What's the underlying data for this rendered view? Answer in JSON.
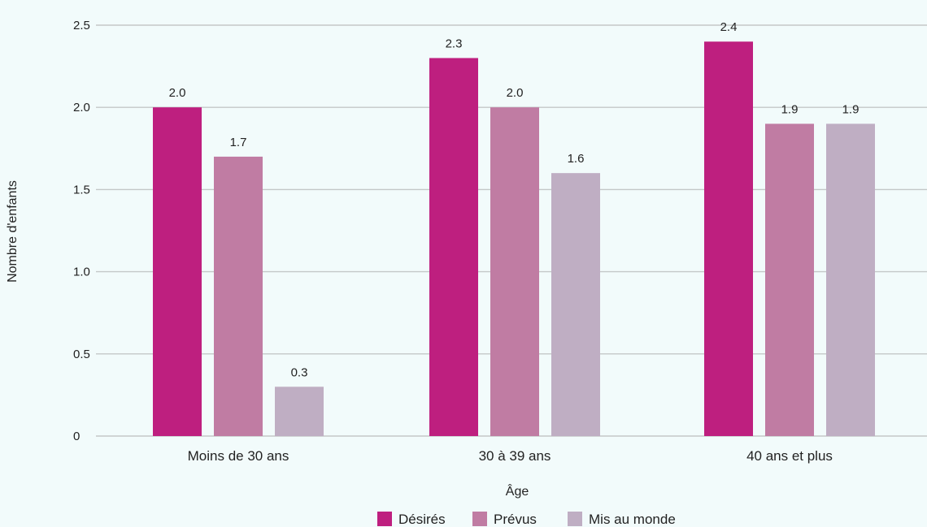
{
  "chart_data": {
    "type": "bar",
    "categories": [
      "Moins de 30 ans",
      "30 à 39 ans",
      "40 ans et plus"
    ],
    "series": [
      {
        "name": "Désirés",
        "values": [
          2.0,
          2.3,
          2.4
        ],
        "value_labels": [
          "2.0",
          "2.3",
          "2.4"
        ],
        "color": "#be1f7f"
      },
      {
        "name": "Prévus",
        "values": [
          1.7,
          2.0,
          1.9
        ],
        "value_labels": [
          "1.7",
          "2.0",
          "1.9"
        ],
        "color": "#c07ca3"
      },
      {
        "name": "Mis au monde",
        "values": [
          0.3,
          1.6,
          1.9
        ],
        "value_labels": [
          "0.3",
          "1.6",
          "1.9"
        ],
        "color": "#bfaec3"
      }
    ],
    "xlabel": "Âge",
    "ylabel": "Nombre d'enfants",
    "ylim": [
      0,
      2.5
    ],
    "yticks": [
      0,
      0.5,
      1.0,
      1.5,
      2.0,
      2.5
    ],
    "ytick_labels": [
      "0",
      "0.5",
      "1.0",
      "1.5",
      "2.0",
      "2.5"
    ],
    "grid": true,
    "legend_position": "bottom-center"
  },
  "colors": {
    "background": "#f2fbfb",
    "gridline": "#c4c8c8",
    "text": "#222222"
  }
}
